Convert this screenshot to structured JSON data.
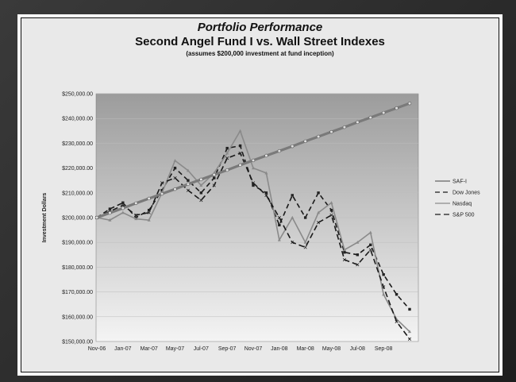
{
  "chart_data": {
    "type": "line",
    "title": "Portfolio Performance",
    "subtitle": "Second Angel Fund I vs. Wall Street Indexes",
    "note": "(assumes $200,000 investment at fund inception)",
    "ylabel": "Investment Dollars",
    "xlabel": "",
    "ylim": [
      150000,
      250000
    ],
    "y_ticks": [
      {
        "value": 150000,
        "label": "$150,000.00"
      },
      {
        "value": 160000,
        "label": "$160,000.00"
      },
      {
        "value": 170000,
        "label": "$170,000.00"
      },
      {
        "value": 180000,
        "label": "$180,000.00"
      },
      {
        "value": 190000,
        "label": "$190,000.00"
      },
      {
        "value": 200000,
        "label": "$200,000.00"
      },
      {
        "value": 210000,
        "label": "$210,000.00"
      },
      {
        "value": 220000,
        "label": "$220,000.00"
      },
      {
        "value": 230000,
        "label": "$230,000.00"
      },
      {
        "value": 240000,
        "label": "$240,000.00"
      },
      {
        "value": 250000,
        "label": "$250,000.00"
      }
    ],
    "categories": [
      "Nov-06",
      "Dec-06",
      "Jan-07",
      "Feb-07",
      "Mar-07",
      "Apr-07",
      "May-07",
      "Jun-07",
      "Jul-07",
      "Aug-07",
      "Sep-07",
      "Oct-07",
      "Nov-07",
      "Dec-07",
      "Jan-08",
      "Feb-08",
      "Mar-08",
      "Apr-08",
      "May-08",
      "Jun-08",
      "Jul-08",
      "Aug-08",
      "Sep-08",
      "Oct-08",
      "Nov-08"
    ],
    "x_tick_labels": [
      "Nov-06",
      "",
      "Jan-07",
      "",
      "Mar-07",
      "",
      "May-07",
      "",
      "Jul-07",
      "",
      "Sep-07",
      "",
      "Nov-07",
      "",
      "Jan-08",
      "",
      "Mar-08",
      "",
      "May-08",
      "",
      "Jul-08",
      "",
      "Sep-08",
      "",
      ""
    ],
    "legend_position": "right",
    "background": "gradient gray",
    "series": [
      {
        "name": "SAF-I",
        "color": "#7a7a7a",
        "dash": "",
        "marker": "circle",
        "values": [
          200000,
          201900,
          203800,
          205800,
          207700,
          209600,
          211500,
          213500,
          215400,
          217300,
          219200,
          221200,
          223100,
          225000,
          226900,
          228800,
          230800,
          232700,
          234600,
          236500,
          238500,
          240400,
          242300,
          244200,
          246100
        ]
      },
      {
        "name": "Dow Jones",
        "color": "#1a1a1a",
        "dash": "6,4",
        "marker": "square",
        "values": [
          200000,
          203500,
          206000,
          200000,
          203000,
          211000,
          220000,
          215000,
          210000,
          216000,
          228000,
          229000,
          213000,
          210000,
          197000,
          209000,
          200000,
          210000,
          203000,
          186000,
          185000,
          189000,
          177000,
          169000,
          163000
        ]
      },
      {
        "name": "Nasdaq",
        "color": "#8a8a8a",
        "dash": "",
        "marker": "triangle",
        "values": [
          200000,
          199000,
          202000,
          199500,
          199000,
          210000,
          223000,
          219000,
          213000,
          218000,
          226000,
          235000,
          220000,
          218000,
          191000,
          200000,
          190000,
          202000,
          206000,
          187000,
          190000,
          194000,
          169000,
          159000,
          154000
        ]
      },
      {
        "name": "S&P 500",
        "color": "#1a1a1a",
        "dash": "7,4",
        "marker": "x",
        "values": [
          200000,
          202500,
          205000,
          201000,
          202000,
          214000,
          216000,
          211000,
          207000,
          213000,
          224000,
          226000,
          214000,
          209000,
          200000,
          190000,
          188000,
          198000,
          201000,
          183000,
          181000,
          187000,
          172000,
          158000,
          151000
        ]
      }
    ]
  }
}
